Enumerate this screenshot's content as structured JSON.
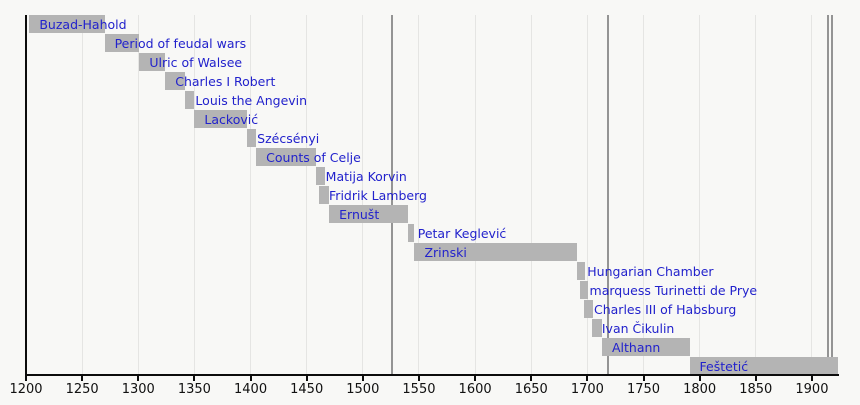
{
  "chart_data": {
    "type": "bar",
    "subtype": "timeline-gantt",
    "orientation": "horizontal",
    "title": "",
    "xlabel": "",
    "ylabel": "",
    "axis": {
      "min": 1200,
      "max": 1925,
      "tick_interval": 50,
      "tick_years": [
        1200,
        1250,
        1300,
        1350,
        1400,
        1450,
        1500,
        1550,
        1600,
        1650,
        1700,
        1750,
        1800,
        1850,
        1900
      ],
      "tick_labels": [
        "1200",
        "1250",
        "1300",
        "1350",
        "1400",
        "1450",
        "1500",
        "1550",
        "1600",
        "1650",
        "1700",
        "1750",
        "1800",
        "1850",
        "1900"
      ]
    },
    "event_lines": [
      1526,
      1718,
      1914,
      1918
    ],
    "bars": [
      {
        "label": "Buzad-Hahold",
        "from": 1203,
        "till": 1270
      },
      {
        "label": "Period of feudal wars",
        "from": 1270,
        "till": 1301
      },
      {
        "label": "Ulric of Walsee",
        "from": 1301,
        "till": 1324
      },
      {
        "label": "Charles I Robert",
        "from": 1324,
        "till": 1342
      },
      {
        "label": "Louis the Angevin",
        "from": 1342,
        "till": 1350
      },
      {
        "label": "Lacković",
        "from": 1350,
        "till": 1397
      },
      {
        "label": "Szécsényi",
        "from": 1397,
        "till": 1405
      },
      {
        "label": "Counts of Celje",
        "from": 1405,
        "till": 1458
      },
      {
        "label": "Matija Korvin",
        "from": 1458,
        "till": 1466
      },
      {
        "label": "Fridrik Lamberg",
        "from": 1461,
        "till": 1470
      },
      {
        "label": "Ernušt",
        "from": 1470,
        "till": 1540
      },
      {
        "label": "Petar Keglević",
        "from": 1540,
        "till": 1546
      },
      {
        "label": "Zrinski",
        "from": 1546,
        "till": 1691
      },
      {
        "label": "Hungarian Chamber",
        "from": 1691,
        "till": 1698
      },
      {
        "label": "marquess Turinetti de Prye",
        "from": 1693,
        "till": 1701
      },
      {
        "label": "Charles III of Habsburg",
        "from": 1697,
        "till": 1705
      },
      {
        "label": "Ivan Čikulin",
        "from": 1704,
        "till": 1713
      },
      {
        "label": "Althann",
        "from": 1713,
        "till": 1791
      },
      {
        "label": "Feštetić",
        "from": 1791,
        "till": 1923
      }
    ],
    "colors": {
      "background": "#f8f8f6",
      "bar": "#b4b4b4",
      "bar_label_text": "#2222cc",
      "grid_light": "#e5e5e3",
      "grid_dark": "#949494",
      "axis": "#0c0c0c",
      "tick_label_text": "#111111"
    }
  }
}
